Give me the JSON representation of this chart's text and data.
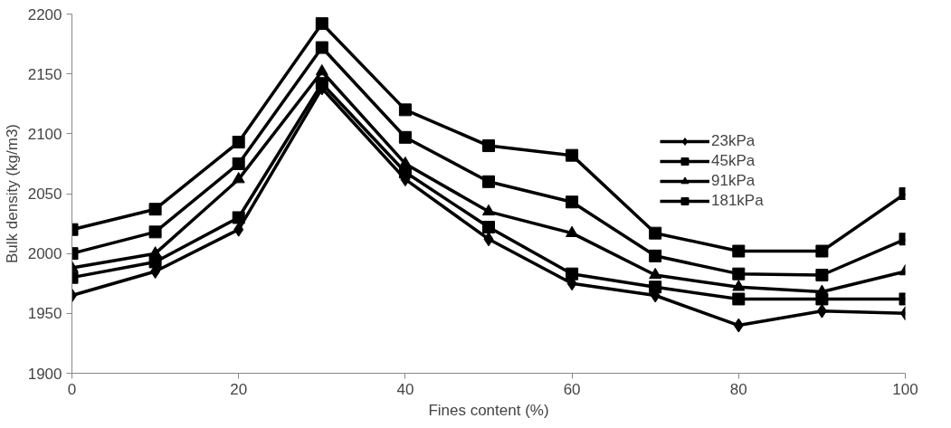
{
  "chart_data": {
    "type": "line",
    "xlabel": "Fines content (%)",
    "ylabel": "Bulk density (kg/m3)",
    "x": [
      0,
      10,
      20,
      30,
      40,
      50,
      60,
      70,
      80,
      90,
      100
    ],
    "xlim": [
      0,
      100
    ],
    "xticks": [
      0,
      20,
      40,
      60,
      80,
      100
    ],
    "ylim": [
      1900,
      2200
    ],
    "yticks": [
      1900,
      1950,
      2000,
      2050,
      2100,
      2150,
      2200
    ],
    "grid": false,
    "legend": "top right",
    "line_style": "solid",
    "series": [
      {
        "name": "23kPa",
        "color": "#000000",
        "marker": "diamond",
        "values": [
          1965,
          1985,
          2020,
          2138,
          2062,
          2012,
          1975,
          1965,
          1940,
          1952,
          1950
        ]
      },
      {
        "name": "45kPa",
        "color": "#000000",
        "marker": "square",
        "values": [
          1980,
          1993,
          2030,
          2142,
          2068,
          2022,
          1983,
          1972,
          1962,
          1962,
          1962
        ]
      },
      {
        "name": "91kPa",
        "color": "#000000",
        "marker": "triangle",
        "values": [
          1988,
          2000,
          2062,
          2152,
          2075,
          2035,
          2017,
          1982,
          1972,
          1968,
          1985
        ]
      },
      {
        "name": "181kPa",
        "color": "#000000",
        "marker": "square",
        "values": [
          2000,
          2018,
          2075,
          2172,
          2097,
          2060,
          2043,
          1998,
          1983,
          1982,
          2012
        ]
      },
      {
        "color": "#000000",
        "marker": "square",
        "values": [
          2020,
          2037,
          2093,
          2192,
          2120,
          2090,
          2082,
          2017,
          2002,
          2002,
          2050
        ]
      }
    ]
  }
}
